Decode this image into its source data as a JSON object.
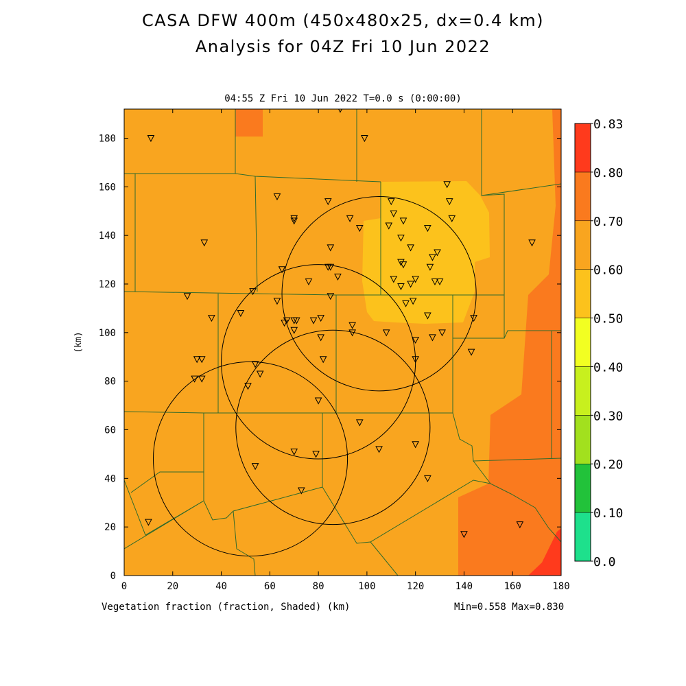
{
  "title_line1": "CASA DFW 400m (450x480x25, dx=0.4 km)",
  "title_line2": "Analysis for 04Z Fri 10 Jun 2022",
  "subtitle": "04:55 Z Fri 10 Jun 2022   T=0.0 s (0:00:00)",
  "footer_left": "Vegetation fraction (fraction, Shaded)  (km)",
  "footer_right": "Min=0.558 Max=0.830",
  "axes": {
    "ylabel": "(km)",
    "xlim": [
      0,
      180
    ],
    "ylim": [
      0,
      192
    ],
    "x_ticks": [
      "0",
      "20",
      "40",
      "60",
      "80",
      "100",
      "120",
      "140",
      "160",
      "180"
    ],
    "y_ticks": [
      "0",
      "20",
      "40",
      "60",
      "80",
      "100",
      "120",
      "140",
      "160",
      "180"
    ]
  },
  "colorbar": {
    "labels": [
      "0.0",
      "0.10",
      "0.20",
      "0.30",
      "0.40",
      "0.50",
      "0.60",
      "0.70",
      "0.80",
      "0.83"
    ],
    "colors": [
      "#1ee08c",
      "#22c23a",
      "#a2e01e",
      "#c8f01e",
      "#f2ff22",
      "#fcc21c",
      "#f9a51f",
      "#fa7a1e",
      "#ff3a1c"
    ]
  },
  "field_colors": {
    "base": "#f9a51f",
    "yellow": "#fcc21c",
    "dark": "#fa7a1e",
    "red": "#ff3a1c"
  },
  "radar_rings_km": [
    {
      "cx": 52,
      "cy": 48,
      "r": 40
    },
    {
      "cx": 80,
      "cy": 88,
      "r": 40
    },
    {
      "cx": 86,
      "cy": 61,
      "r": 40
    },
    {
      "cx": 105,
      "cy": 116,
      "r": 40
    }
  ],
  "stations_km": [
    [
      11,
      180
    ],
    [
      89,
      192
    ],
    [
      99,
      180
    ],
    [
      63,
      156
    ],
    [
      70,
      147
    ],
    [
      70,
      146
    ],
    [
      84,
      154
    ],
    [
      93,
      147
    ],
    [
      33,
      137
    ],
    [
      85,
      135
    ],
    [
      97,
      143
    ],
    [
      110,
      154
    ],
    [
      111,
      149
    ],
    [
      115,
      146
    ],
    [
      109,
      144
    ],
    [
      114,
      139
    ],
    [
      118,
      135
    ],
    [
      125,
      143
    ],
    [
      133,
      161
    ],
    [
      134,
      154
    ],
    [
      135,
      147
    ],
    [
      129,
      133
    ],
    [
      127,
      131
    ],
    [
      126,
      127
    ],
    [
      114,
      129
    ],
    [
      115,
      128
    ],
    [
      168,
      137
    ],
    [
      65,
      126
    ],
    [
      84,
      127
    ],
    [
      85,
      127
    ],
    [
      88,
      123
    ],
    [
      76,
      121
    ],
    [
      111,
      122
    ],
    [
      114,
      119
    ],
    [
      118,
      120
    ],
    [
      120,
      122
    ],
    [
      128,
      121
    ],
    [
      130,
      121
    ],
    [
      26,
      115
    ],
    [
      53,
      117
    ],
    [
      63,
      113
    ],
    [
      85,
      115
    ],
    [
      116,
      112
    ],
    [
      119,
      113
    ],
    [
      125,
      107
    ],
    [
      36,
      106
    ],
    [
      48,
      108
    ],
    [
      66,
      104
    ],
    [
      67,
      105
    ],
    [
      70,
      105
    ],
    [
      71,
      105
    ],
    [
      70,
      101
    ],
    [
      78,
      105
    ],
    [
      81,
      106
    ],
    [
      94,
      103
    ],
    [
      94,
      100
    ],
    [
      81,
      98
    ],
    [
      108,
      100
    ],
    [
      120,
      97
    ],
    [
      127,
      98
    ],
    [
      131,
      100
    ],
    [
      144,
      106
    ],
    [
      143,
      92
    ],
    [
      30,
      89
    ],
    [
      32,
      89
    ],
    [
      54,
      87
    ],
    [
      56,
      83
    ],
    [
      29,
      81
    ],
    [
      32,
      81
    ],
    [
      51,
      78
    ],
    [
      82,
      89
    ],
    [
      120,
      89
    ],
    [
      80,
      72
    ],
    [
      97,
      63
    ],
    [
      70,
      51
    ],
    [
      79,
      50
    ],
    [
      105,
      52
    ],
    [
      120,
      54
    ],
    [
      54,
      45
    ],
    [
      73,
      35
    ],
    [
      125,
      40
    ],
    [
      10,
      22
    ],
    [
      140,
      17
    ],
    [
      163,
      21
    ]
  ]
}
